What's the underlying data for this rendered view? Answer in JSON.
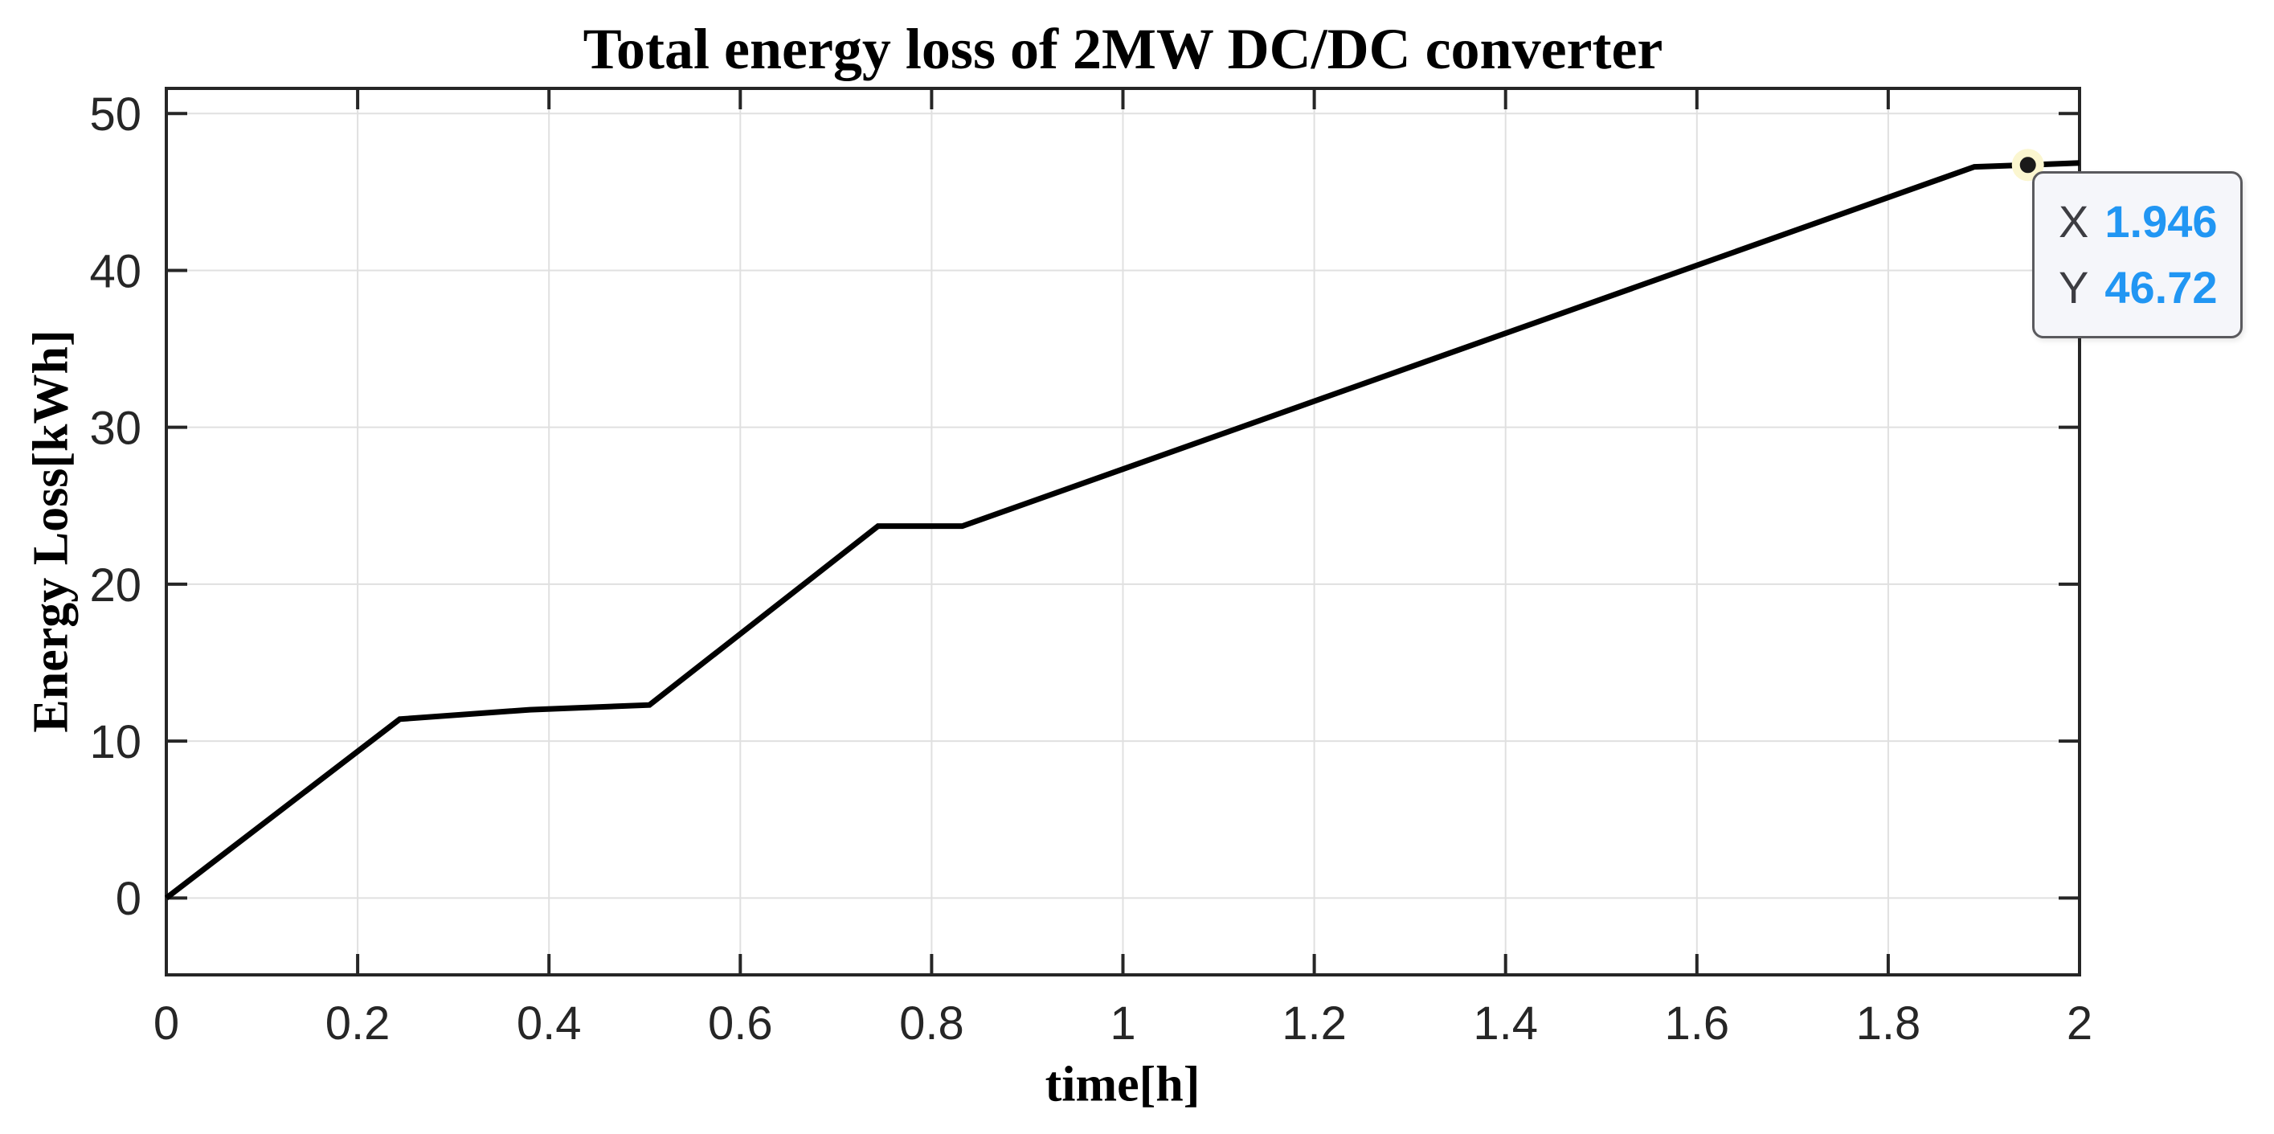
{
  "figure": {
    "background": "#ffffff"
  },
  "chart_data": {
    "type": "line",
    "title": "Total energy loss of 2MW DC/DC converter",
    "xlabel": "time[h]",
    "ylabel": "Energy Loss[kWh]",
    "xlim": [
      0,
      2
    ],
    "ylim": [
      -4.9,
      51.6
    ],
    "grid": true,
    "xticks": {
      "values": [
        0,
        0.2,
        0.4,
        0.6,
        0.8,
        1,
        1.2,
        1.4,
        1.6,
        1.8,
        2
      ],
      "labels": [
        "0",
        "0.2",
        "0.4",
        "0.6",
        "0.8",
        "1",
        "1.2",
        "1.4",
        "1.6",
        "1.8",
        "2"
      ]
    },
    "yticks": {
      "values": [
        0,
        10,
        20,
        30,
        40,
        50
      ],
      "labels": [
        "0",
        "10",
        "20",
        "30",
        "40",
        "50"
      ]
    },
    "series": [
      {
        "name": "total-energy-loss",
        "color": "#000000",
        "points": [
          [
            0,
            0
          ],
          [
            0.244,
            11.4
          ],
          [
            0.38,
            12.0
          ],
          [
            0.505,
            12.3
          ],
          [
            0.744,
            23.7
          ],
          [
            0.832,
            23.7
          ],
          [
            1.89,
            46.6
          ],
          [
            1.946,
            46.72
          ],
          [
            2,
            46.85
          ]
        ]
      }
    ],
    "datatip": {
      "x_label": "X",
      "x_value": "1.946",
      "y_label": "Y",
      "y_value": "46.72",
      "anchor": [
        1.946,
        46.72
      ]
    }
  },
  "colors": {
    "line": "#000000",
    "grid": "#e0e0e0",
    "axis": "#262626",
    "tick_label": "#262626",
    "title_color": "#000000",
    "datatip_bg": "#f5f6fa",
    "datatip_border": "#5a5a5e",
    "datatip_label": "#3d3d42",
    "datatip_value": "#2196f3",
    "marker_fill": "#1a1a1a",
    "marker_halo": "#fbf6d0"
  }
}
